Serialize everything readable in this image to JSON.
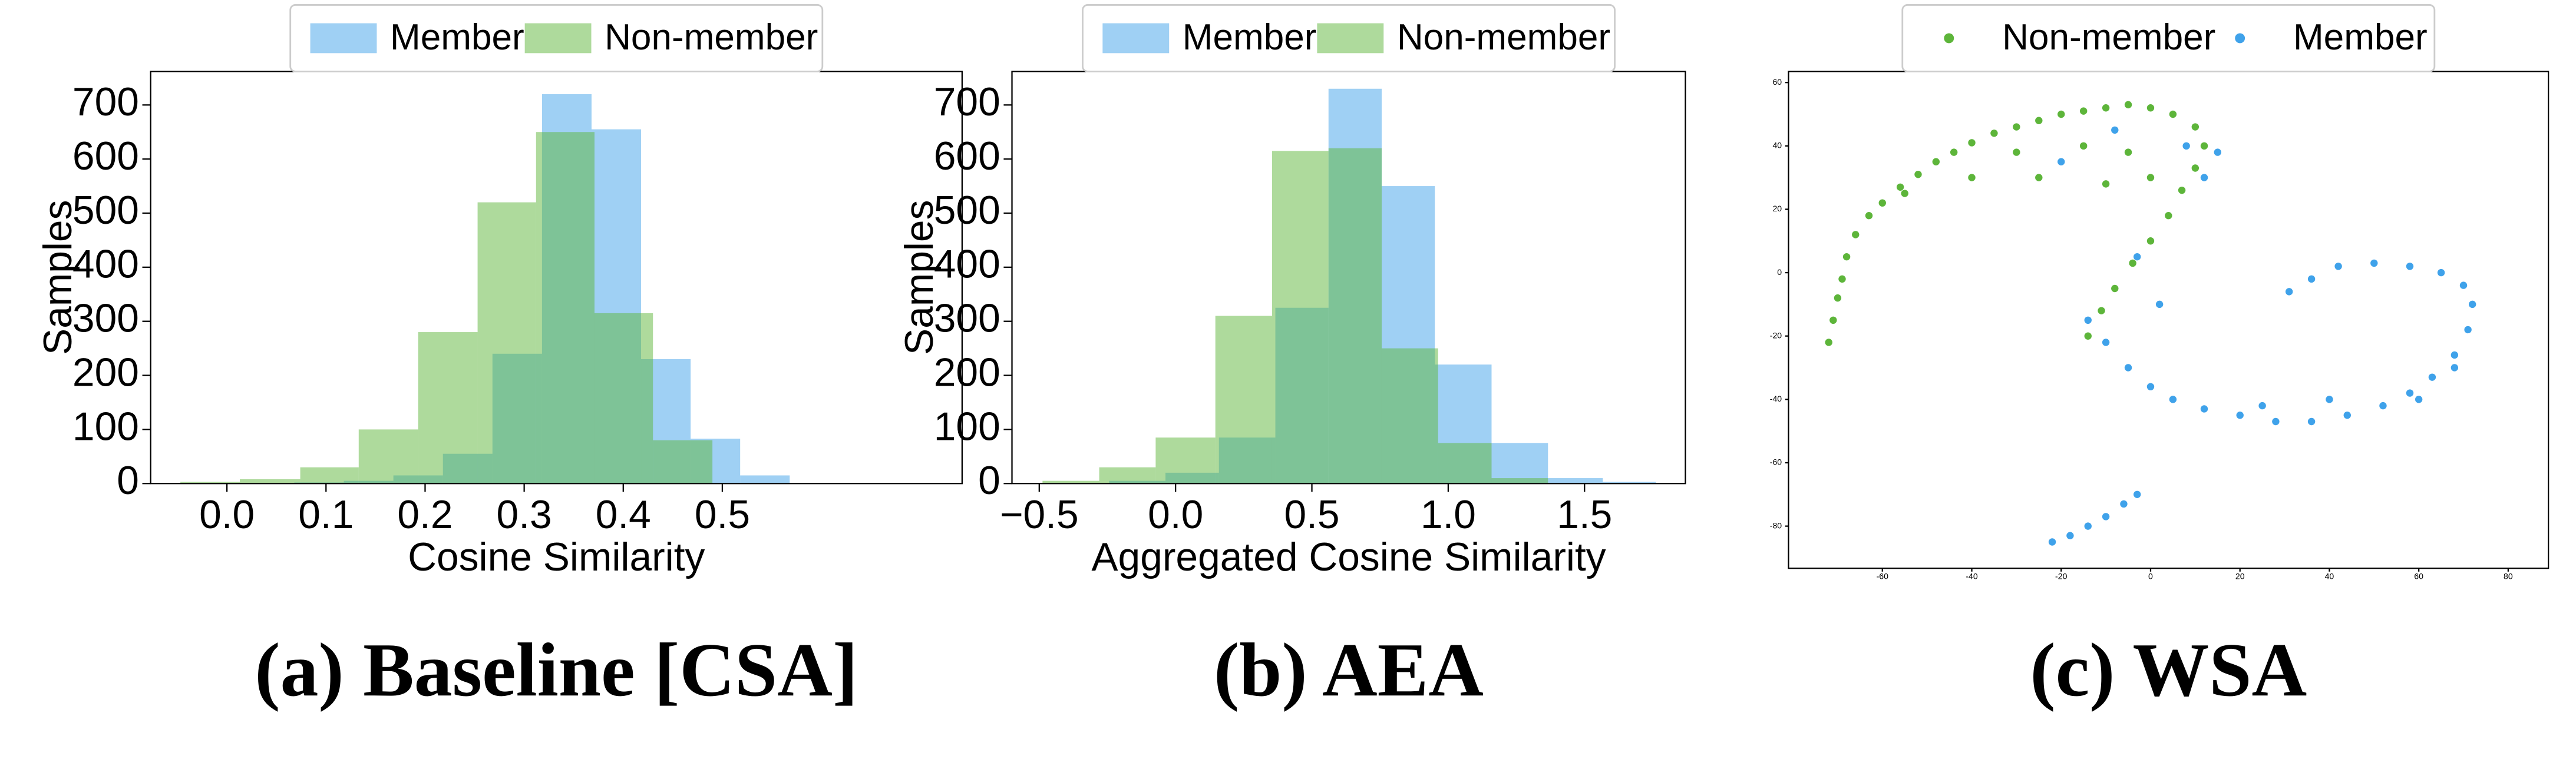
{
  "chart_data": [
    {
      "type": "histogram",
      "caption": "(a) Baseline [CSA]",
      "xlabel": "Cosine Similarity",
      "ylabel": "Samples",
      "legend": "top",
      "xlim": [
        -0.077,
        0.742
      ],
      "ylim": [
        0,
        762
      ],
      "xticks": [
        {
          "value": 0,
          "label": "0.0"
        },
        0.1,
        0.2,
        0.3,
        0.4,
        0.5
      ],
      "yticks": [
        0,
        100,
        200,
        300,
        400,
        500,
        600,
        700
      ],
      "series": [
        {
          "name": "Member",
          "color": "#3fa2ea",
          "bins": [
            0.068,
            0.118,
            0.168,
            0.218,
            0.268,
            0.318,
            0.368,
            0.418,
            0.468,
            0.518,
            0.568
          ],
          "values": [
            2,
            5,
            15,
            55,
            240,
            720,
            655,
            230,
            83,
            15
          ]
        },
        {
          "name": "Non-member",
          "color": "#5db53a",
          "bins": [
            -0.047,
            0.013,
            0.074,
            0.133,
            0.193,
            0.253,
            0.312,
            0.371,
            0.43,
            0.49
          ],
          "values": [
            3,
            8,
            30,
            100,
            280,
            520,
            650,
            315,
            80
          ]
        }
      ]
    },
    {
      "type": "histogram",
      "caption": "(b) AEA",
      "xlabel": "Aggregated Cosine Similarity",
      "ylabel": "Samples",
      "legend": "top",
      "xlim": [
        -0.6,
        1.87
      ],
      "ylim": [
        0,
        762
      ],
      "xticks": [
        {
          "value": -0.5,
          "label": "−0.5"
        },
        {
          "value": 0,
          "label": "0.0"
        },
        0.5,
        {
          "value": 1,
          "label": "1.0"
        },
        1.5
      ],
      "yticks": [
        0,
        100,
        200,
        300,
        400,
        500,
        600,
        700
      ],
      "series": [
        {
          "name": "Member",
          "color": "#3fa2ea",
          "bins": [
            -0.244,
            -0.037,
            0.159,
            0.366,
            0.561,
            0.756,
            0.951,
            1.159,
            1.366,
            1.567,
            1.762
          ],
          "values": [
            5,
            20,
            85,
            325,
            730,
            550,
            220,
            75,
            10,
            3
          ]
        },
        {
          "name": "Non-member",
          "color": "#5db53a",
          "bins": [
            -0.488,
            -0.28,
            -0.073,
            0.146,
            0.354,
            0.561,
            0.756,
            0.963,
            1.159,
            1.366
          ],
          "values": [
            5,
            30,
            85,
            310,
            615,
            620,
            250,
            75,
            10
          ]
        }
      ]
    },
    {
      "type": "scatter",
      "caption": "(c) WSA",
      "legend": "top",
      "xlim": [
        -81,
        89
      ],
      "ylim": [
        -93.3,
        63.5
      ],
      "xticks": [
        -60,
        -40,
        -20,
        0,
        20,
        40,
        60,
        80
      ],
      "yticks": [
        -80,
        -60,
        -40,
        -20,
        0,
        20,
        40,
        60
      ],
      "series": [
        {
          "name": "Non-member",
          "color": "#5db53a",
          "x": [
            -72,
            -71,
            -70,
            -69,
            -68,
            -66,
            -63,
            -60,
            -56,
            -52,
            -48,
            -44,
            -40,
            -35,
            -30,
            -25,
            -20,
            -15,
            -10,
            -5,
            0,
            5,
            10,
            12,
            10,
            7,
            4,
            0,
            -4,
            -8,
            -11,
            -14,
            -30,
            -25,
            -15,
            -5,
            -10,
            0,
            -55,
            -40
          ],
          "y": [
            -22,
            -15,
            -8,
            -2,
            5,
            12,
            18,
            22,
            27,
            31,
            35,
            38,
            41,
            44,
            46,
            48,
            50,
            51,
            52,
            53,
            52,
            50,
            46,
            40,
            33,
            26,
            18,
            10,
            3,
            -5,
            -12,
            -20,
            38,
            30,
            40,
            38,
            28,
            30,
            25,
            30
          ]
        },
        {
          "name": "Member",
          "color": "#3fa2ea",
          "x": [
            -14,
            -10,
            -5,
            0,
            5,
            12,
            20,
            28,
            36,
            44,
            52,
            58,
            63,
            68,
            71,
            72,
            70,
            65,
            58,
            50,
            42,
            36,
            31,
            -22,
            -18,
            -14,
            -10,
            -6,
            -3,
            8,
            12,
            -8,
            15,
            -20,
            2,
            -3,
            60,
            40,
            25,
            68
          ],
          "y": [
            -15,
            -22,
            -30,
            -36,
            -40,
            -43,
            -45,
            -47,
            -47,
            -45,
            -42,
            -38,
            -33,
            -26,
            -18,
            -10,
            -4,
            0,
            2,
            3,
            2,
            -2,
            -6,
            -85,
            -83,
            -80,
            -77,
            -73,
            -70,
            40,
            30,
            45,
            38,
            35,
            -10,
            5,
            -40,
            -40,
            -42,
            -30
          ]
        }
      ]
    }
  ]
}
